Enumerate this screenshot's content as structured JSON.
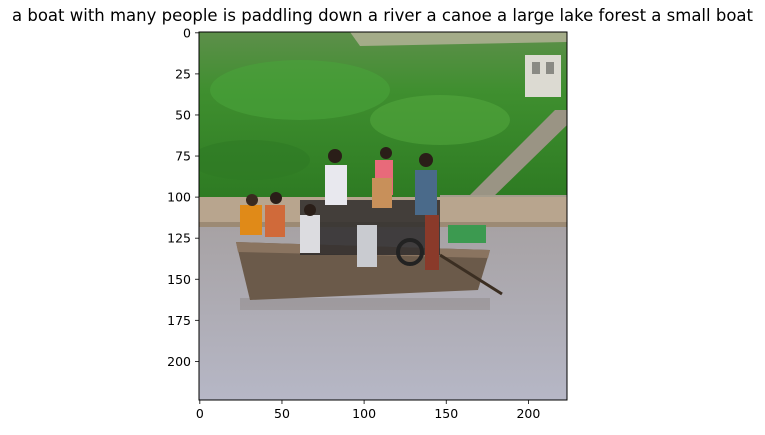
{
  "figure": {
    "title": "a boat with many people is paddling down a river a canoe a large lake forest a small boat"
  },
  "axes": {
    "x_ticks": [
      "0",
      "50",
      "100",
      "150",
      "200"
    ],
    "y_ticks": [
      "0",
      "25",
      "50",
      "75",
      "100",
      "125",
      "150",
      "175",
      "200"
    ],
    "x_range": [
      0,
      224
    ],
    "y_range": [
      0,
      224
    ]
  },
  "image": {
    "subject": "wooden ferry boat crowded with people and motorbikes on a river, green grassy hill with stone steps behind",
    "colors": {
      "hill": "#3f8f2f",
      "hill_dark": "#2f6f24",
      "water": "#a9a9b3",
      "shore": "#b8a58e",
      "boat": "#6b5a4a",
      "steps": "#9a9484"
    }
  }
}
